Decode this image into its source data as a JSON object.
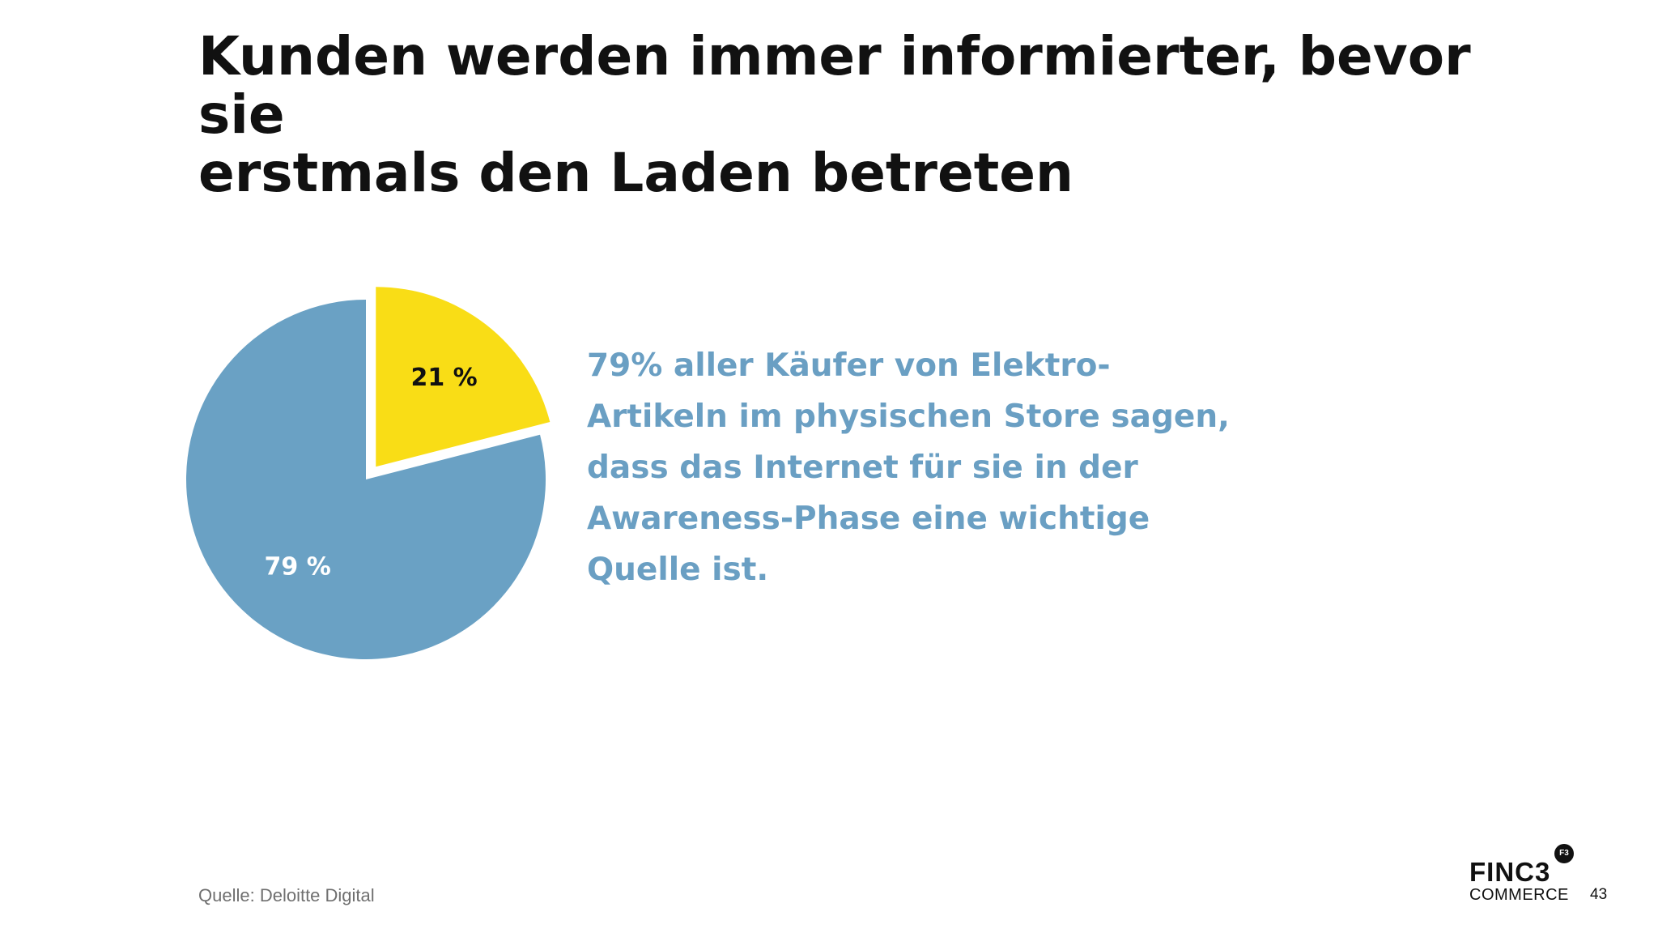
{
  "slide": {
    "title_lines": [
      "Kunden werden immer informierter, bevor sie",
      "erstmals den Laden betreten"
    ],
    "statement_lines": [
      "79% aller Käufer von Elektro-",
      "Artikeln im physischen Store sagen,",
      "dass das Internet für sie in der",
      "Awareness-Phase eine wichtige",
      "Quelle ist."
    ],
    "statement_color": "#6a9fc3",
    "source": "Quelle: Deloitte Digital",
    "logo": {
      "line1": "FINC3",
      "line2": "COMMERCE",
      "mark": "F3"
    },
    "page_number": "43"
  },
  "chart_data": {
    "type": "pie",
    "start_angle_deg": 0,
    "slices": [
      {
        "label": "21 %",
        "value": 21,
        "color": "#f9dd16",
        "label_color": "#111111",
        "exploded": true
      },
      {
        "label": "79 %",
        "value": 79,
        "color": "#6aa1c4",
        "label_color": "#ffffff",
        "exploded": false
      }
    ]
  }
}
